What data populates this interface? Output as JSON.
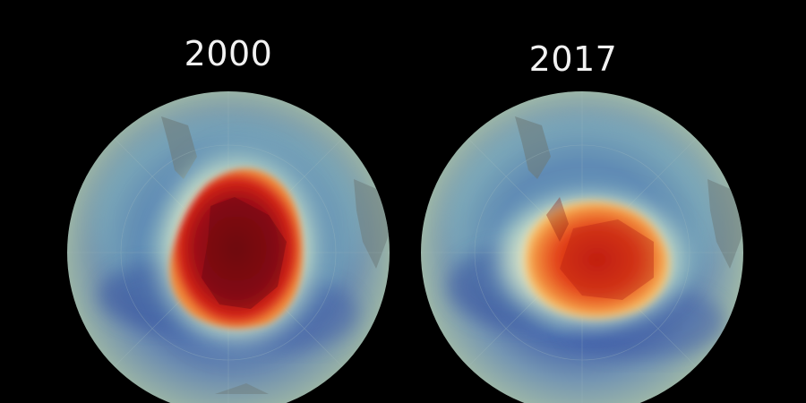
{
  "maps": [
    {
      "year": "2000",
      "hole_intensity": "severe"
    },
    {
      "year": "2017",
      "hole_intensity": "moderate"
    }
  ],
  "colors": {
    "background": "#000000",
    "hole_core_severe": "#8e0a0f",
    "hole_core_moderate": "#d62a12",
    "hole_edge": "#f5f0b8",
    "low_band": "#3f5ea6",
    "outer_ring": "#8aa7a4"
  }
}
